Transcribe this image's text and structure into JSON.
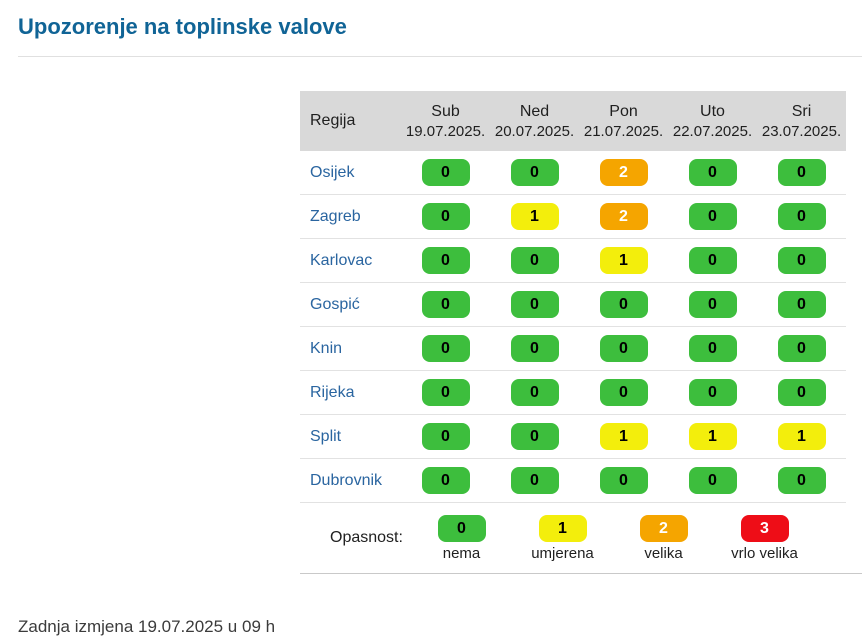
{
  "page": {
    "title": "Upozorenje na toplinske valove",
    "last_updated": "Zadnja izmjena 19.07.2025 u 09 h"
  },
  "colors": {
    "title": "#106496",
    "region_link": "#2a65a0",
    "header_bg": "#d9d9d9",
    "row_border": "#e2e2e2",
    "divider": "#e0e0e0",
    "footer_text": "#3b3b3b"
  },
  "levels": [
    {
      "value": "0",
      "label": "nema",
      "bg": "#3dbe3d",
      "fg": "#000000"
    },
    {
      "value": "1",
      "label": "umjerena",
      "bg": "#f3ee0c",
      "fg": "#000000"
    },
    {
      "value": "2",
      "label": "velika",
      "bg": "#f5a500",
      "fg": "#ffffff"
    },
    {
      "value": "3",
      "label": "vrlo velika",
      "bg": "#ee0d17",
      "fg": "#ffffff"
    }
  ],
  "table": {
    "region_column_header": "Regija",
    "day_columns": [
      {
        "day": "Sub",
        "date": "19.07.2025."
      },
      {
        "day": "Ned",
        "date": "20.07.2025."
      },
      {
        "day": "Pon",
        "date": "21.07.2025."
      },
      {
        "day": "Uto",
        "date": "22.07.2025."
      },
      {
        "day": "Sri",
        "date": "23.07.2025."
      }
    ],
    "rows": [
      {
        "region": "Osijek",
        "values": [
          0,
          0,
          2,
          0,
          0
        ]
      },
      {
        "region": "Zagreb",
        "values": [
          0,
          1,
          2,
          0,
          0
        ]
      },
      {
        "region": "Karlovac",
        "values": [
          0,
          0,
          1,
          0,
          0
        ]
      },
      {
        "region": "Gospić",
        "values": [
          0,
          0,
          0,
          0,
          0
        ]
      },
      {
        "region": "Knin",
        "values": [
          0,
          0,
          0,
          0,
          0
        ]
      },
      {
        "region": "Rijeka",
        "values": [
          0,
          0,
          0,
          0,
          0
        ]
      },
      {
        "region": "Split",
        "values": [
          0,
          0,
          1,
          1,
          1
        ]
      },
      {
        "region": "Dubrovnik",
        "values": [
          0,
          0,
          0,
          0,
          0
        ]
      }
    ]
  },
  "legend": {
    "label": "Opasnost:"
  }
}
